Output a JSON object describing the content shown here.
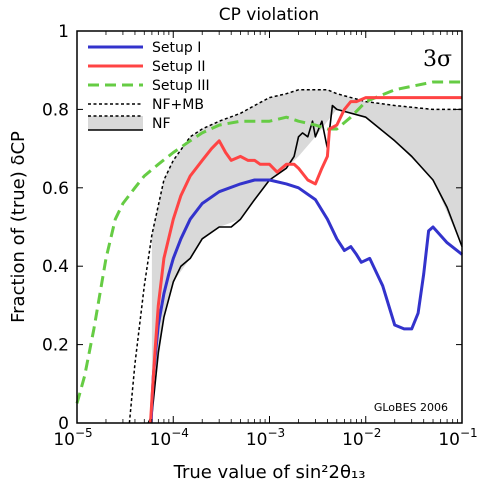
{
  "chart_data": {
    "type": "line",
    "title": "CP violation",
    "xlabel": "True value of sin²2θ₁₃",
    "ylabel": "Fraction of (true) δCP",
    "x_scale": "log",
    "xlim": [
      1e-05,
      0.1
    ],
    "ylim": [
      0,
      1
    ],
    "x_ticks": [
      {
        "value": 1e-05,
        "base": "10",
        "exp": "−5"
      },
      {
        "value": 0.0001,
        "base": "10",
        "exp": "−4"
      },
      {
        "value": 0.001,
        "base": "10",
        "exp": "−3"
      },
      {
        "value": 0.01,
        "base": "10",
        "exp": "−2"
      },
      {
        "value": 0.1,
        "base": "10",
        "exp": "−1"
      }
    ],
    "y_ticks": [
      {
        "value": 0,
        "label": "0"
      },
      {
        "value": 0.2,
        "label": "0.2"
      },
      {
        "value": 0.4,
        "label": "0.4"
      },
      {
        "value": 0.6,
        "label": "0.6"
      },
      {
        "value": 0.8,
        "label": "0.8"
      },
      {
        "value": 1,
        "label": "1"
      }
    ],
    "annotation": "3σ",
    "credit": "GLoBES 2006",
    "legend_position": "top-left",
    "band": {
      "name": "NF+MB / NF",
      "fill": "#d9d9d9",
      "x": [
        6e-05,
        8e-05,
        0.0001,
        0.00015,
        0.0002,
        0.0003,
        0.0005,
        0.0007,
        0.001,
        0.0015,
        0.002,
        0.003,
        0.004,
        0.005,
        0.01,
        0.02,
        0.05,
        0.1
      ],
      "upper": [
        0.48,
        0.62,
        0.67,
        0.73,
        0.75,
        0.77,
        0.79,
        0.81,
        0.83,
        0.84,
        0.85,
        0.85,
        0.85,
        0.84,
        0.82,
        0.81,
        0.8,
        0.8
      ],
      "lower": [
        0.02,
        0.27,
        0.36,
        0.42,
        0.47,
        0.5,
        0.52,
        0.57,
        0.62,
        0.65,
        0.68,
        0.73,
        0.77,
        0.8,
        0.78,
        0.72,
        0.62,
        0.45
      ]
    },
    "series": [
      {
        "name": "Setup I",
        "color": "#3333cc",
        "dash": "solid",
        "x": [
          5.9e-05,
          6e-05,
          6.2e-05,
          7e-05,
          8e-05,
          9e-05,
          0.0001,
          0.00012,
          0.00015,
          0.0002,
          0.0003,
          0.0005,
          0.0007,
          0.001,
          0.0015,
          0.002,
          0.003,
          0.004,
          0.005,
          0.006,
          0.007,
          0.008,
          0.009,
          0.011,
          0.015,
          0.02,
          0.025,
          0.03,
          0.035,
          0.04,
          0.045,
          0.05,
          0.07,
          0.1
        ],
        "y": [
          0.0,
          0.05,
          0.12,
          0.25,
          0.33,
          0.38,
          0.42,
          0.47,
          0.52,
          0.56,
          0.59,
          0.61,
          0.62,
          0.62,
          0.61,
          0.6,
          0.57,
          0.52,
          0.47,
          0.44,
          0.45,
          0.43,
          0.41,
          0.42,
          0.35,
          0.25,
          0.24,
          0.24,
          0.28,
          0.38,
          0.49,
          0.5,
          0.46,
          0.43
        ]
      },
      {
        "name": "Setup II",
        "color": "#ff4444",
        "dash": "solid",
        "x": [
          5.8e-05,
          6e-05,
          6.5e-05,
          7e-05,
          8e-05,
          0.0001,
          0.00012,
          0.00015,
          0.0002,
          0.00025,
          0.0003,
          0.00035,
          0.0004,
          0.0005,
          0.0006,
          0.0007,
          0.0008,
          0.001,
          0.0012,
          0.0015,
          0.0018,
          0.002,
          0.0025,
          0.003,
          0.0035,
          0.004,
          0.0042,
          0.005,
          0.006,
          0.007,
          0.008,
          0.01,
          0.02,
          0.05,
          0.1
        ],
        "y": [
          0.0,
          0.06,
          0.19,
          0.3,
          0.42,
          0.52,
          0.58,
          0.63,
          0.67,
          0.7,
          0.72,
          0.69,
          0.67,
          0.68,
          0.67,
          0.67,
          0.66,
          0.66,
          0.64,
          0.66,
          0.66,
          0.65,
          0.62,
          0.61,
          0.65,
          0.68,
          0.75,
          0.76,
          0.8,
          0.82,
          0.82,
          0.83,
          0.83,
          0.83,
          0.83
        ]
      },
      {
        "name": "Setup III",
        "color": "#66cc44",
        "dash": "dashed",
        "x": [
          1e-05,
          1.2e-05,
          1.5e-05,
          2e-05,
          2.5e-05,
          3e-05,
          4e-05,
          5e-05,
          7e-05,
          0.0001,
          0.00015,
          0.0002,
          0.0003,
          0.0005,
          0.0007,
          0.001,
          0.0015,
          0.002,
          0.003,
          0.004,
          0.005,
          0.007,
          0.01,
          0.02,
          0.05,
          0.1
        ],
        "y": [
          0.05,
          0.12,
          0.24,
          0.42,
          0.52,
          0.56,
          0.6,
          0.63,
          0.66,
          0.69,
          0.72,
          0.74,
          0.76,
          0.77,
          0.77,
          0.77,
          0.78,
          0.77,
          0.76,
          0.75,
          0.75,
          0.78,
          0.82,
          0.85,
          0.87,
          0.87
        ]
      },
      {
        "name": "NF+MB",
        "color": "#000000",
        "dash": "dotted",
        "x": [
          3.5e-05,
          4e-05,
          5e-05,
          6e-05,
          8e-05,
          0.0001,
          0.00015,
          0.0002,
          0.0003,
          0.0005,
          0.0007,
          0.001,
          0.0015,
          0.002,
          0.003,
          0.004,
          0.005,
          0.01,
          0.02,
          0.05,
          0.1
        ],
        "y": [
          0.0,
          0.15,
          0.35,
          0.48,
          0.62,
          0.67,
          0.73,
          0.75,
          0.77,
          0.79,
          0.81,
          0.83,
          0.84,
          0.85,
          0.85,
          0.85,
          0.84,
          0.82,
          0.81,
          0.8,
          0.8
        ]
      },
      {
        "name": "NF",
        "color": "#000000",
        "dash": "solid",
        "x": [
          5.5e-05,
          6e-05,
          7e-05,
          8e-05,
          0.0001,
          0.00012,
          0.00015,
          0.0002,
          0.0003,
          0.0004,
          0.0005,
          0.0007,
          0.001,
          0.0015,
          0.0018,
          0.002,
          0.0022,
          0.0025,
          0.0028,
          0.003,
          0.0035,
          0.004,
          0.0045,
          0.005,
          0.01,
          0.02,
          0.03,
          0.05,
          0.07,
          0.1
        ],
        "y": [
          0.0,
          0.02,
          0.18,
          0.27,
          0.36,
          0.4,
          0.42,
          0.47,
          0.5,
          0.5,
          0.52,
          0.57,
          0.62,
          0.65,
          0.68,
          0.73,
          0.74,
          0.73,
          0.77,
          0.73,
          0.77,
          0.7,
          0.81,
          0.8,
          0.78,
          0.72,
          0.68,
          0.62,
          0.55,
          0.45
        ]
      }
    ]
  }
}
